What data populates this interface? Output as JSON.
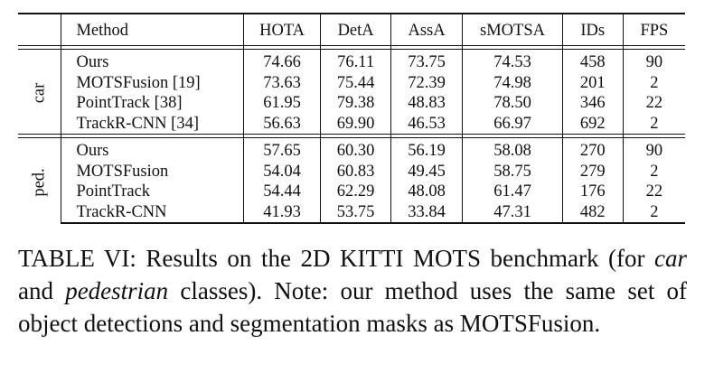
{
  "table": {
    "columns": [
      "Method",
      "HOTA",
      "DetA",
      "AssA",
      "sMOTSA",
      "IDs",
      "FPS"
    ],
    "groups": [
      {
        "label": "car",
        "rows": [
          {
            "method": "Ours",
            "values": [
              "74.66",
              "76.11",
              "73.75",
              "74.53",
              "458",
              "90"
            ],
            "bold": [
              true,
              true,
              false,
              true,
              false,
              false,
              true
            ]
          },
          {
            "method": "MOTSFusion [19]",
            "values": [
              "73.63",
              "75.44",
              "72.39",
              "74.98",
              "201",
              "2"
            ],
            "bold": [
              false,
              false,
              false,
              false,
              false,
              true,
              false
            ]
          },
          {
            "method": "PointTrack [38]",
            "values": [
              "61.95",
              "79.38",
              "48.83",
              "78.50",
              "346",
              "22"
            ],
            "bold": [
              false,
              false,
              true,
              false,
              true,
              false,
              false
            ]
          },
          {
            "method": "TrackR-CNN [34]",
            "values": [
              "56.63",
              "69.90",
              "46.53",
              "66.97",
              "692",
              "2"
            ],
            "bold": [
              false,
              false,
              false,
              false,
              false,
              false,
              false
            ]
          }
        ]
      },
      {
        "label": "ped.",
        "rows": [
          {
            "method": "Ours",
            "values": [
              "57.65",
              "60.30",
              "56.19",
              "58.08",
              "270",
              "90"
            ],
            "bold": [
              true,
              true,
              false,
              true,
              false,
              false,
              true
            ]
          },
          {
            "method": "MOTSFusion",
            "values": [
              "54.04",
              "60.83",
              "49.45",
              "58.75",
              "279",
              "2"
            ],
            "bold": [
              false,
              false,
              false,
              false,
              false,
              false,
              false
            ]
          },
          {
            "method": "PointTrack",
            "values": [
              "54.44",
              "62.29",
              "48.08",
              "61.47",
              "176",
              "22"
            ],
            "bold": [
              false,
              false,
              true,
              false,
              true,
              true,
              false
            ]
          },
          {
            "method": "TrackR-CNN",
            "values": [
              "41.93",
              "53.75",
              "33.84",
              "47.31",
              "482",
              "2"
            ],
            "bold": [
              false,
              false,
              false,
              false,
              false,
              false,
              false
            ]
          }
        ]
      }
    ]
  },
  "caption": {
    "part1": "TABLE VI: Results on the 2D KITTI MOTS benchmark (for ",
    "em1": "car",
    "part2": " and ",
    "em2": "pedestrian",
    "part3": " classes). Note: our method uses the same set of object detections and segmentation masks as MOTSFusion."
  }
}
